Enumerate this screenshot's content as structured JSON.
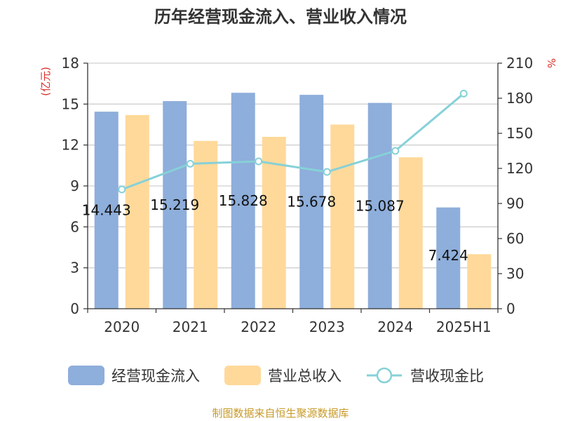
{
  "chart_data": {
    "type": "bar",
    "title": "历年经营现金流入、营业收入情况",
    "categories": [
      "2020",
      "2021",
      "2022",
      "2023",
      "2024",
      "2025H1"
    ],
    "series": [
      {
        "name": "经营现金流入",
        "kind": "bar",
        "axis": "left",
        "color": "#8eaedb",
        "values": [
          14.443,
          15.219,
          15.828,
          15.678,
          15.087,
          7.424
        ]
      },
      {
        "name": "营业总收入",
        "kind": "bar",
        "axis": "left",
        "color": "#ffd99a",
        "values": [
          14.2,
          12.3,
          12.6,
          13.5,
          11.1,
          4.0
        ]
      },
      {
        "name": "营收现金比",
        "kind": "line",
        "axis": "right",
        "color": "#86d1d8",
        "values": [
          102,
          124,
          126,
          117,
          135,
          184
        ]
      }
    ],
    "data_labels": [
      "14.443",
      "15.219",
      "15.828",
      "15.678",
      "15.087",
      "7.424"
    ],
    "y_left": {
      "label": "(亿元)",
      "min": 0,
      "max": 18,
      "ticks": [
        0,
        3,
        6,
        9,
        12,
        15,
        18
      ]
    },
    "y_right": {
      "label": "%",
      "min": 0,
      "max": 210,
      "ticks": [
        0,
        30,
        60,
        90,
        120,
        150,
        180,
        210
      ]
    },
    "grid": true,
    "legend_position": "bottom",
    "source": "制图数据来自恒生聚源数据库"
  }
}
